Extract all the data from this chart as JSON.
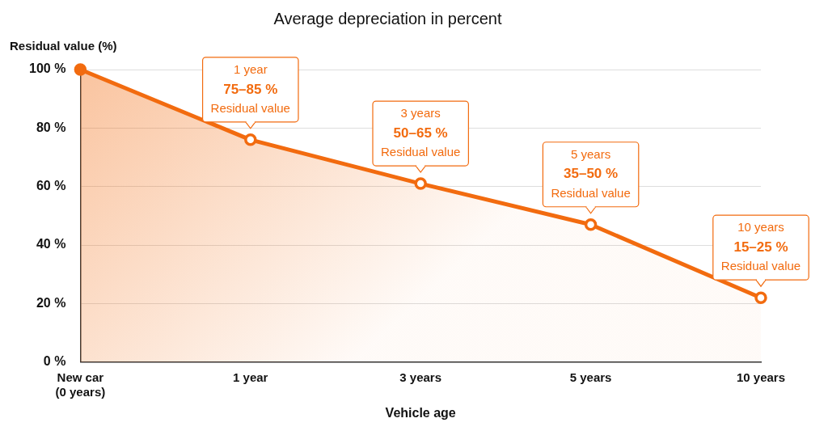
{
  "chart_data": {
    "type": "area",
    "title": "Average depreciation in percent",
    "xlabel": "Vehicle age",
    "ylabel": "Residual value (%)",
    "categories": [
      "New car\n(0 years)",
      "1 year",
      "3 years",
      "5 years",
      "10 years"
    ],
    "series": [
      {
        "color": "#f26b0f",
        "values": [
          100,
          76,
          61,
          47,
          22
        ]
      }
    ],
    "ylim": [
      0,
      100
    ],
    "yticks": [
      {
        "value": 0,
        "label": "0 %"
      },
      {
        "value": 20,
        "label": "20 %"
      },
      {
        "value": 40,
        "label": "40 %"
      },
      {
        "value": 60,
        "label": "60 %"
      },
      {
        "value": 80,
        "label": "80 %"
      },
      {
        "value": 100,
        "label": "100 %"
      }
    ],
    "grid": "y",
    "legend": false,
    "marker": "circle",
    "line_style": "solid",
    "annotations": [
      {
        "text": "1 year\n75–85 %\nResidual value",
        "x": "1 year",
        "y": 76
      },
      {
        "text": "3 years\n50–65 %\nResidual value",
        "x": "3 years",
        "y": 61
      },
      {
        "text": "5 years\n35–50 %\nResidual value",
        "x": "5 years",
        "y": 47
      },
      {
        "text": "10 years\n15–25 %\nResidual value",
        "x": "10 years",
        "y": 22
      }
    ]
  }
}
